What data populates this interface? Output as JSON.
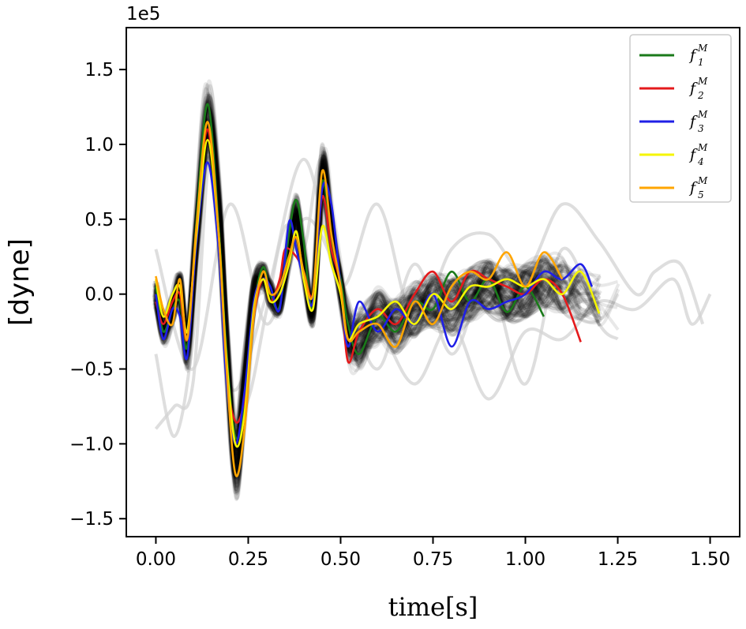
{
  "chart_data": {
    "type": "line",
    "title": "",
    "xlabel": "time[s]",
    "ylabel": "[dyne]",
    "y_offset_label": "1e5",
    "xlim": [
      -0.08,
      1.58
    ],
    "ylim": [
      -1.62,
      1.78
    ],
    "y_scale": 100000,
    "x_ticks": [
      0.0,
      0.25,
      0.5,
      0.75,
      1.0,
      1.25,
      1.5
    ],
    "x_tick_labels": [
      "0.00",
      "0.25",
      "0.50",
      "0.75",
      "1.00",
      "1.25",
      "1.50"
    ],
    "y_ticks": [
      -1.5,
      -1.0,
      -0.5,
      0.0,
      0.5,
      1.0,
      1.5
    ],
    "y_tick_labels": [
      "−1.5",
      "−1.0",
      "−0.5",
      "0.0",
      "0.5",
      "1.0",
      "1.5"
    ],
    "grid": false,
    "legend_position": "top-right",
    "background_ensemble": {
      "color": "#000000",
      "description_count": 120,
      "mean_x": [
        0.0,
        0.02,
        0.045,
        0.065,
        0.085,
        0.11,
        0.14,
        0.17,
        0.19,
        0.215,
        0.24,
        0.265,
        0.29,
        0.31,
        0.335,
        0.36,
        0.38,
        0.4,
        0.425,
        0.45,
        0.475,
        0.5,
        0.52,
        0.55,
        0.6,
        0.65,
        0.7,
        0.75,
        0.8,
        0.85,
        0.9,
        0.95,
        1.0,
        1.05,
        1.1,
        1.15,
        1.2,
        1.25
      ],
      "mean_y": [
        0.0,
        -0.22,
        -0.1,
        0.05,
        -0.35,
        0.4,
        1.12,
        0.55,
        -0.3,
        -1.1,
        -0.6,
        0.0,
        0.12,
        0.0,
        -0.05,
        0.3,
        0.5,
        0.2,
        -0.1,
        0.78,
        0.4,
        0.05,
        -0.25,
        -0.3,
        -0.15,
        -0.2,
        -0.1,
        -0.05,
        -0.08,
        0.0,
        0.05,
        0.0,
        0.02,
        0.08,
        0.05,
        0.0,
        -0.05,
        -0.1
      ]
    },
    "outlier_traces": {
      "color": "#d3d3d3",
      "series": [
        {
          "x": [
            0.0,
            0.05,
            0.1,
            0.15,
            0.2,
            0.25,
            0.3,
            0.35,
            0.4,
            0.45,
            0.5,
            0.55,
            0.6,
            0.7,
            0.8,
            0.9,
            1.0,
            1.1,
            1.2,
            1.3,
            1.4,
            1.45,
            1.5
          ],
          "y": [
            -0.9,
            -0.75,
            -0.6,
            0.95,
            -0.8,
            -0.7,
            -0.1,
            0.45,
            0.3,
            0.9,
            -0.1,
            -0.3,
            -0.2,
            -0.6,
            -0.2,
            -0.7,
            -0.25,
            -0.3,
            -0.05,
            -0.1,
            0.1,
            -0.2,
            0.0
          ]
        },
        {
          "x": [
            0.0,
            0.05,
            0.1,
            0.15,
            0.2,
            0.3,
            0.4,
            0.5,
            0.6,
            0.7,
            0.8,
            0.9,
            1.0,
            1.1,
            1.2,
            1.3,
            1.35,
            1.42,
            1.48
          ],
          "y": [
            -0.4,
            -0.95,
            -0.3,
            1.2,
            -0.6,
            0.0,
            0.9,
            0.05,
            0.6,
            -0.2,
            0.3,
            0.4,
            0.15,
            0.6,
            0.35,
            0.0,
            0.15,
            0.2,
            -0.2
          ]
        },
        {
          "x": [
            0.0,
            0.1,
            0.2,
            0.3,
            0.4,
            0.5,
            0.6,
            0.7,
            0.8,
            0.9,
            1.0,
            1.1,
            1.2,
            1.25
          ],
          "y": [
            0.3,
            -0.5,
            0.6,
            -0.2,
            0.5,
            0.1,
            -0.5,
            0.2,
            -0.4,
            0.1,
            -0.6,
            0.3,
            -0.2,
            -0.3
          ]
        }
      ]
    },
    "series": [
      {
        "name": "f1M",
        "label_base": "f",
        "label_sub": "1",
        "label_sup": "M",
        "color": "#1a7a1a",
        "x": [
          0.0,
          0.02,
          0.045,
          0.065,
          0.085,
          0.11,
          0.14,
          0.17,
          0.19,
          0.215,
          0.24,
          0.265,
          0.29,
          0.31,
          0.335,
          0.36,
          0.38,
          0.4,
          0.425,
          0.45,
          0.475,
          0.5,
          0.52,
          0.55,
          0.6,
          0.65,
          0.7,
          0.75,
          0.8,
          0.85,
          0.9,
          0.95,
          1.0,
          1.05
        ],
        "y": [
          0.05,
          -0.25,
          -0.1,
          -0.05,
          -0.35,
          0.5,
          1.27,
          0.45,
          -0.35,
          -0.95,
          -0.75,
          -0.1,
          0.18,
          0.0,
          -0.08,
          0.4,
          0.63,
          0.35,
          -0.1,
          0.75,
          0.35,
          0.1,
          -0.2,
          -0.4,
          -0.15,
          -0.25,
          -0.05,
          -0.1,
          0.15,
          -0.05,
          0.1,
          -0.12,
          0.05,
          -0.15
        ]
      },
      {
        "name": "f2M",
        "label_base": "f",
        "label_sub": "2",
        "label_sup": "M",
        "color": "#e41a1c",
        "x": [
          0.0,
          0.02,
          0.045,
          0.065,
          0.085,
          0.11,
          0.14,
          0.17,
          0.19,
          0.215,
          0.24,
          0.265,
          0.29,
          0.31,
          0.335,
          0.35,
          0.38,
          0.4,
          0.425,
          0.45,
          0.475,
          0.5,
          0.52,
          0.55,
          0.6,
          0.65,
          0.7,
          0.75,
          0.8,
          0.85,
          0.9,
          0.95,
          1.0,
          1.05,
          1.1,
          1.15
        ],
        "y": [
          -0.05,
          -0.2,
          -0.05,
          0.0,
          -0.3,
          0.45,
          1.1,
          0.35,
          -0.5,
          -0.85,
          -0.7,
          -0.15,
          0.1,
          -0.05,
          0.1,
          0.3,
          0.25,
          0.15,
          0.0,
          0.65,
          0.3,
          0.05,
          -0.45,
          -0.25,
          -0.1,
          -0.2,
          0.0,
          0.15,
          -0.05,
          0.15,
          0.1,
          0.05,
          0.0,
          0.1,
          0.0,
          -0.32
        ]
      },
      {
        "name": "f3M",
        "label_base": "f",
        "label_sub": "3",
        "label_sup": "M",
        "color": "#1f1fe6",
        "x": [
          0.0,
          0.02,
          0.045,
          0.065,
          0.085,
          0.11,
          0.14,
          0.17,
          0.19,
          0.215,
          0.24,
          0.265,
          0.29,
          0.31,
          0.335,
          0.36,
          0.38,
          0.4,
          0.425,
          0.45,
          0.475,
          0.5,
          0.52,
          0.55,
          0.6,
          0.65,
          0.7,
          0.75,
          0.8,
          0.85,
          0.9,
          0.95,
          1.0,
          1.05,
          1.1,
          1.15,
          1.18
        ],
        "y": [
          0.0,
          -0.3,
          -0.1,
          -0.15,
          -0.42,
          0.35,
          0.88,
          0.3,
          -0.55,
          -1.0,
          -0.65,
          -0.05,
          0.1,
          0.05,
          -0.1,
          0.48,
          0.3,
          0.1,
          -0.05,
          0.7,
          0.6,
          0.05,
          -0.35,
          -0.05,
          -0.25,
          -0.1,
          -0.2,
          0.0,
          -0.35,
          -0.05,
          -0.1,
          -0.05,
          0.0,
          0.15,
          0.1,
          0.2,
          0.05
        ]
      },
      {
        "name": "f4M",
        "label_base": "f",
        "label_sub": "4",
        "label_sup": "M",
        "color": "#f5f500",
        "x": [
          0.0,
          0.02,
          0.045,
          0.065,
          0.085,
          0.11,
          0.14,
          0.17,
          0.19,
          0.215,
          0.24,
          0.265,
          0.29,
          0.31,
          0.335,
          0.36,
          0.38,
          0.4,
          0.425,
          0.45,
          0.475,
          0.5,
          0.52,
          0.55,
          0.6,
          0.65,
          0.7,
          0.75,
          0.8,
          0.85,
          0.9,
          0.95,
          1.0,
          1.05,
          1.1,
          1.15,
          1.2
        ],
        "y": [
          0.1,
          -0.15,
          0.0,
          0.05,
          -0.25,
          0.4,
          1.03,
          0.4,
          -0.4,
          -1.0,
          -0.8,
          -0.1,
          0.1,
          -0.05,
          0.0,
          0.2,
          0.42,
          0.1,
          -0.1,
          0.45,
          0.2,
          0.0,
          -0.3,
          -0.2,
          -0.15,
          -0.05,
          -0.2,
          0.0,
          -0.1,
          0.05,
          0.05,
          0.1,
          0.05,
          0.1,
          0.0,
          0.15,
          -0.13
        ]
      },
      {
        "name": "f5M",
        "label_base": "f",
        "label_sub": "5",
        "label_sup": "M",
        "color": "#ffa500",
        "x": [
          0.0,
          0.02,
          0.045,
          0.065,
          0.085,
          0.11,
          0.14,
          0.17,
          0.19,
          0.215,
          0.24,
          0.265,
          0.29,
          0.31,
          0.335,
          0.36,
          0.38,
          0.4,
          0.425,
          0.45,
          0.475,
          0.5,
          0.52,
          0.55,
          0.6,
          0.65,
          0.7,
          0.75,
          0.8,
          0.85,
          0.9,
          0.95,
          1.0,
          1.05,
          1.1
        ],
        "y": [
          0.12,
          -0.1,
          -0.2,
          0.1,
          -0.3,
          0.45,
          1.15,
          0.4,
          -0.45,
          -1.2,
          -0.9,
          -0.15,
          0.15,
          0.0,
          0.05,
          0.25,
          0.38,
          0.15,
          0.0,
          0.82,
          0.4,
          0.05,
          -0.3,
          -0.25,
          -0.2,
          -0.35,
          -0.05,
          -0.2,
          0.05,
          0.15,
          0.1,
          0.28,
          0.05,
          0.28,
          0.1
        ]
      }
    ]
  }
}
